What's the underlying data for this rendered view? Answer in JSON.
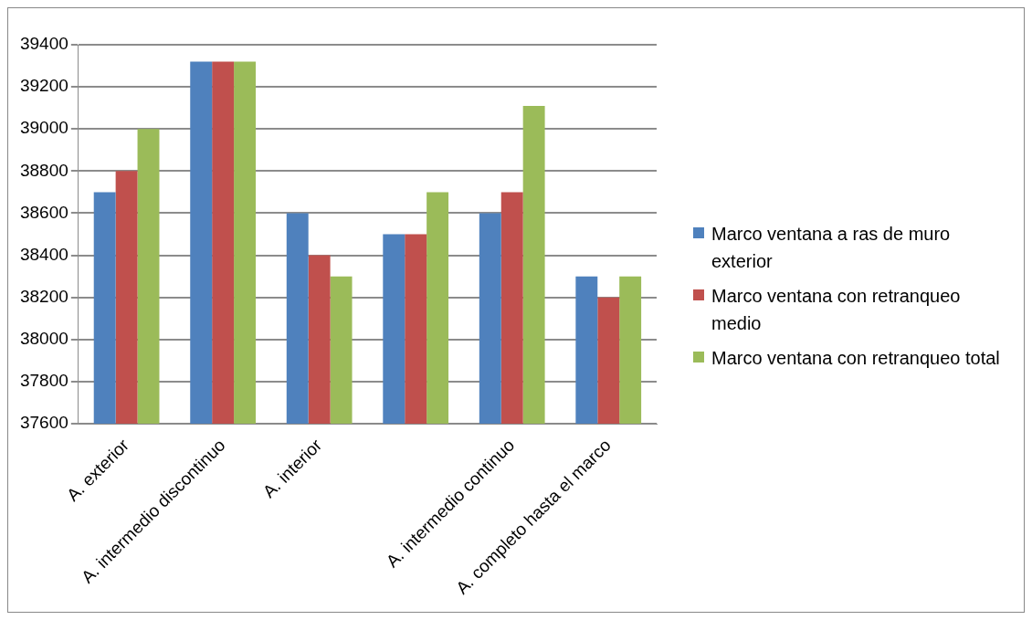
{
  "chart_data": {
    "type": "bar",
    "categories": [
      "A. exterior",
      "A. intermedio discontinuo",
      "A. interior",
      null,
      "A. intermedio continuo",
      "A. completo hasta el marco"
    ],
    "series": [
      {
        "name": "Marco ventana a ras de muro exterior",
        "color": "#4f81bd",
        "values": [
          38700,
          39320,
          38600,
          38500,
          38600,
          38300
        ]
      },
      {
        "name": "Marco ventana con retranqueo medio",
        "color": "#c0504d",
        "values": [
          38800,
          39320,
          38400,
          38500,
          38700,
          38200
        ]
      },
      {
        "name": "Marco ventana con retranqueo total",
        "color": "#9bbb59",
        "values": [
          39000,
          39320,
          38300,
          38700,
          39110,
          38300
        ]
      }
    ],
    "ylim": [
      37600,
      39400
    ],
    "yticks": [
      37600,
      37800,
      38000,
      38200,
      38400,
      38600,
      38800,
      39000,
      39200,
      39400
    ],
    "grid": "y",
    "legend": "right"
  }
}
